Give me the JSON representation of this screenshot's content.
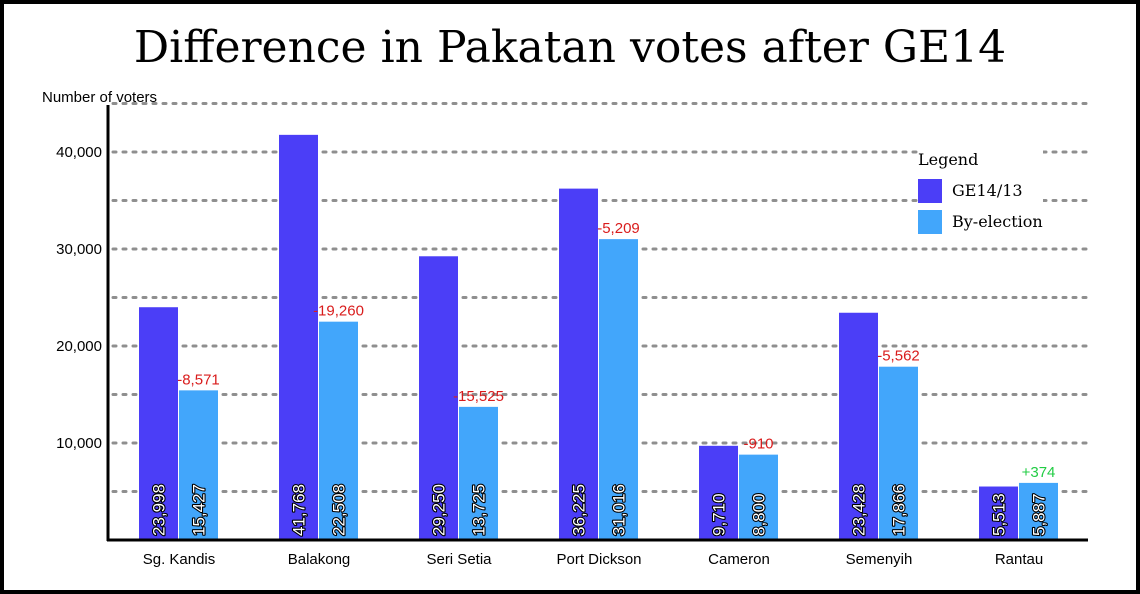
{
  "colors": {
    "ge14": "#4b3ef7",
    "byelection": "#42a6fb",
    "negative": "#d91c1c",
    "positive": "#22cc44",
    "grid": "#8f8f8f",
    "axis": "#000000"
  },
  "chart_data": {
    "type": "bar",
    "title": "Difference in Pakatan votes after GE14",
    "ylabel": "Number of voters",
    "xlabel": "",
    "ylim": [
      0,
      50000
    ],
    "yticks": [
      {
        "value": 10000,
        "label": "10,000"
      },
      {
        "value": 20000,
        "label": "20,000"
      },
      {
        "value": 30000,
        "label": "30,000"
      },
      {
        "value": 40000,
        "label": "40,000"
      }
    ],
    "grid": "dotted horizontal every 5,000",
    "categories": [
      "Sg. Kandis",
      "Balakong",
      "Seri Setia",
      "Port Dickson",
      "Cameron",
      "Semenyih",
      "Rantau"
    ],
    "series": [
      {
        "name": "GE14/13",
        "values": [
          23998,
          41768,
          29250,
          36225,
          9710,
          23428,
          5513
        ],
        "labels": [
          "23,998",
          "41,768",
          "29,250",
          "36,225",
          "9,710",
          "23,428",
          "5,513"
        ]
      },
      {
        "name": "By-election",
        "values": [
          15427,
          22508,
          13725,
          31016,
          8800,
          17866,
          5887
        ],
        "labels": [
          "15,427",
          "22,508",
          "13,725",
          "31,016",
          "8,800",
          "17,866",
          "5,887"
        ]
      }
    ],
    "differences": [
      "-8,571",
      "-19,260",
      "-15,525",
      "-5,209",
      "-910",
      "-5,562",
      "+374"
    ],
    "legend": {
      "title": "Legend",
      "placement": "top-right"
    }
  }
}
